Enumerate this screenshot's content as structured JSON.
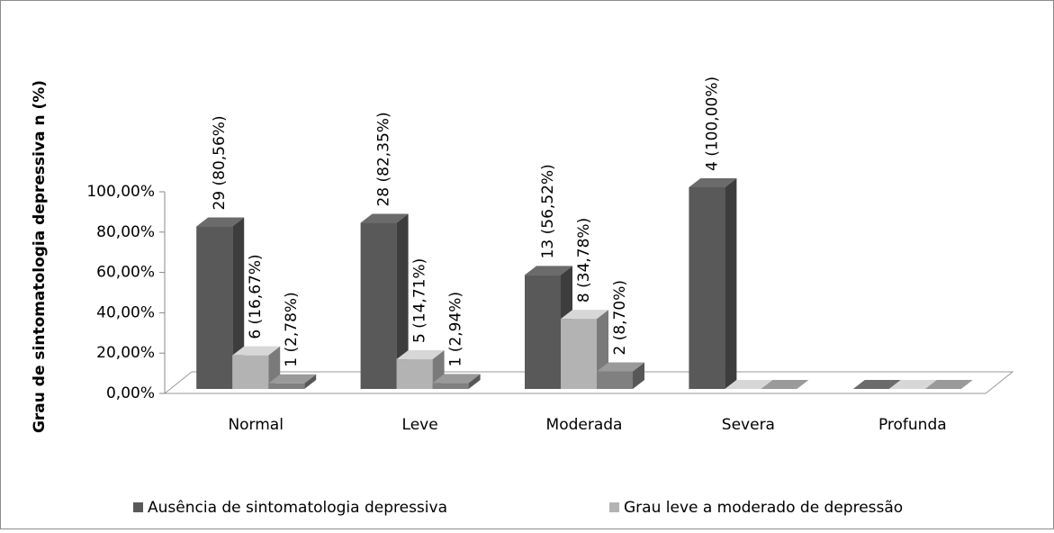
{
  "chart_data": {
    "type": "bar3d",
    "y_label": "Grau de sintomatologia depressiva n (%)",
    "categories": [
      "Normal",
      "Leve",
      "Moderada",
      "Severa",
      "Profunda"
    ],
    "series": [
      {
        "name": "Ausência de sintomatologia depressiva",
        "color": "#595959",
        "values": [
          80.56,
          82.35,
          56.52,
          100,
          0
        ],
        "value_labels": [
          "29 (80,56%)",
          "28 (82,35%)",
          "13 (56,52%)",
          "4 (100,00%)",
          null
        ]
      },
      {
        "name": "Grau leve a moderado de depressão",
        "color": "#b3b3b3",
        "values": [
          16.67,
          14.71,
          34.78,
          0,
          0
        ],
        "value_labels": [
          "6  (16,67%)",
          "5 (14,71%)",
          "8  (34,78%)",
          null,
          null
        ]
      },
      {
        "color": "#808080",
        "values": [
          2.78,
          2.94,
          8.7,
          0,
          0
        ],
        "value_labels": [
          "1 (2,78%)",
          "1 (2,94%)",
          "2 (8,70%)",
          null,
          null
        ]
      }
    ],
    "ylim": [
      0,
      100
    ],
    "yticks": [
      {
        "value": 0,
        "label": "0,00%"
      },
      {
        "value": 20,
        "label": "20,00%"
      },
      {
        "value": 40,
        "label": "40,00%"
      },
      {
        "value": 60,
        "label": "60,00%"
      },
      {
        "value": 80,
        "label": "80,00%"
      },
      {
        "value": 100,
        "label": "100,00%"
      }
    ],
    "grid": false
  }
}
